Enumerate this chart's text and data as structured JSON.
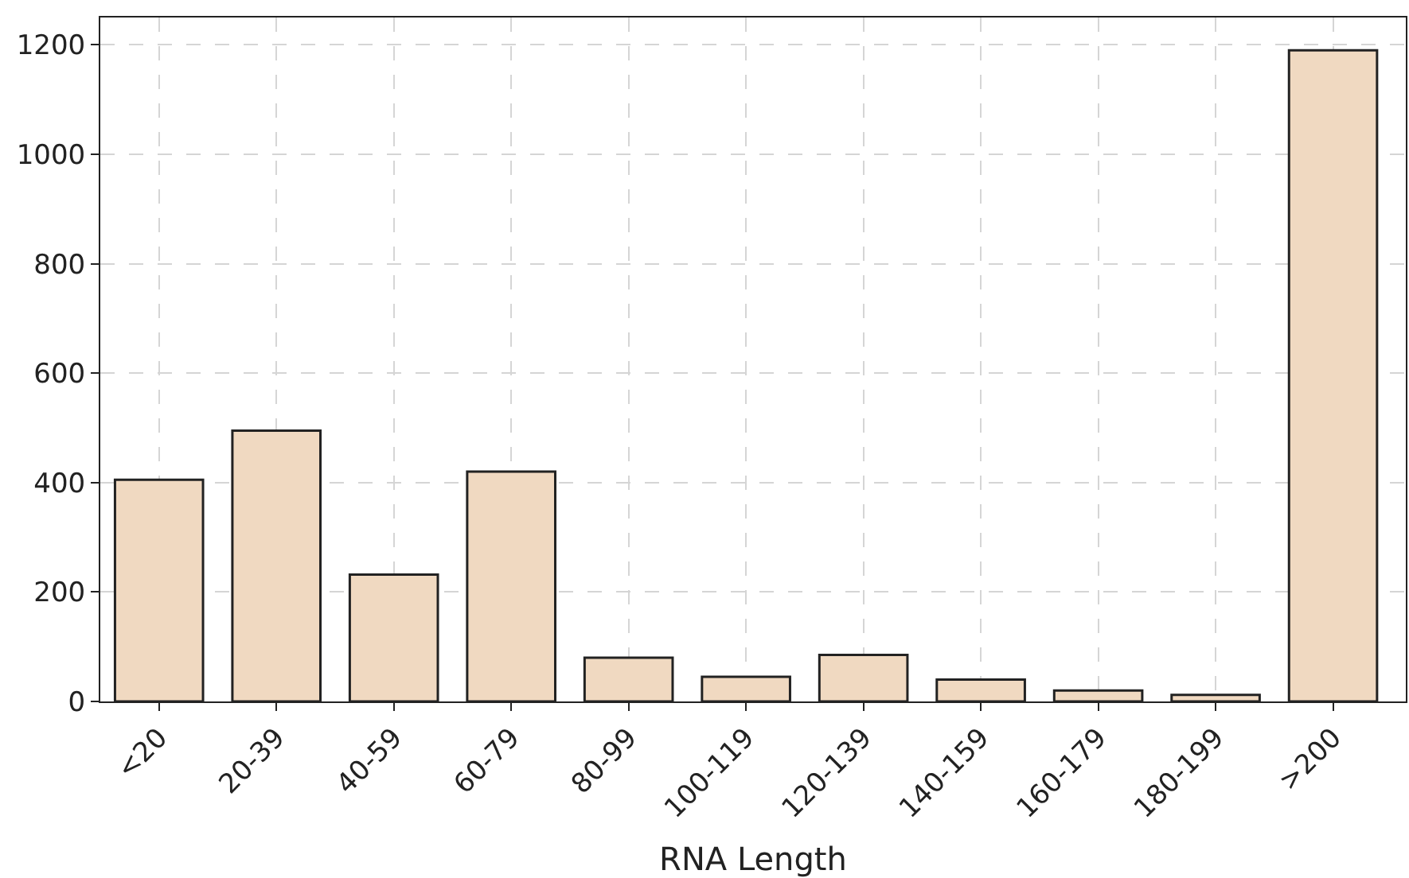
{
  "chart_data": {
    "type": "bar",
    "xlabel": "RNA Length",
    "categories": [
      "<20",
      "20-39",
      "40-59",
      "60-79",
      "80-99",
      "100-119",
      "120-139",
      "140-159",
      "160-179",
      "180-199",
      ">200"
    ],
    "values": [
      405,
      495,
      232,
      420,
      80,
      45,
      85,
      40,
      20,
      12,
      1190
    ],
    "color": "#f0d9c1",
    "ylim": [
      0,
      1250
    ],
    "yticks": [
      0,
      200,
      400,
      600,
      800,
      1000,
      1200
    ],
    "grid": true
  }
}
